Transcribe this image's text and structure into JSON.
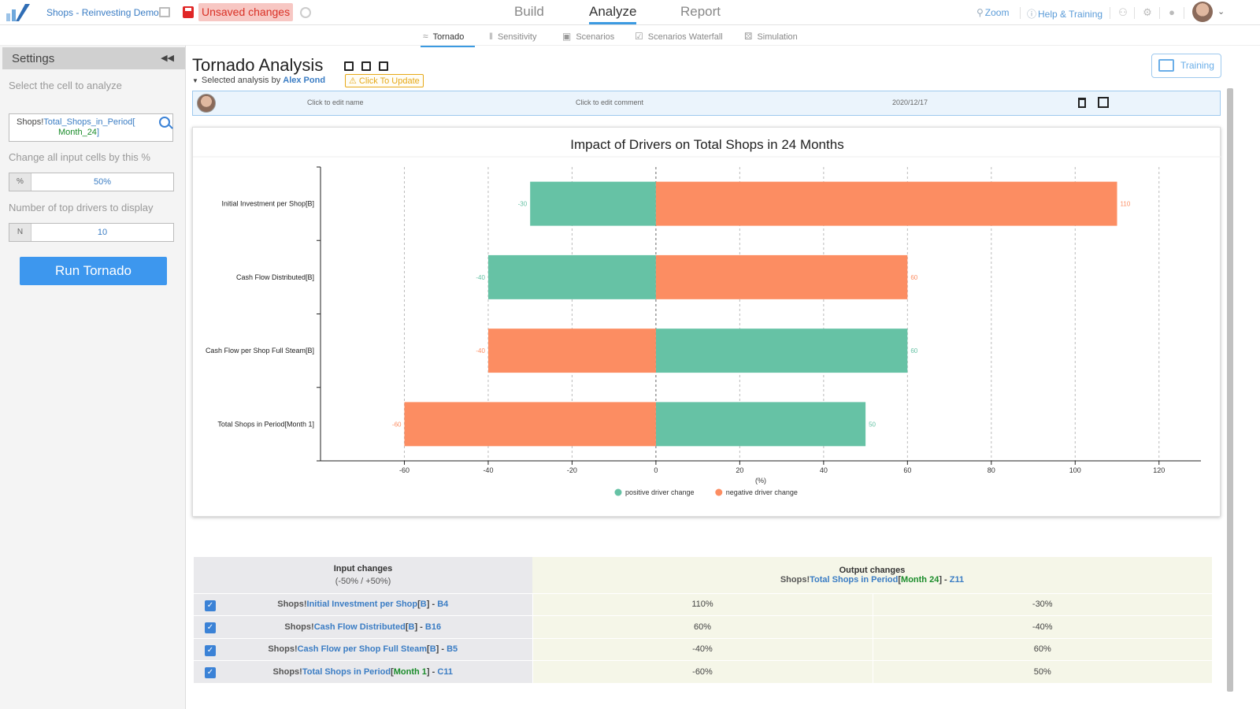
{
  "app": {
    "name": "Shops - Reinvesting Demo",
    "unsaved": "Unsaved changes"
  },
  "nav": {
    "tabs": [
      {
        "label": "Build"
      },
      {
        "label": "Analyze"
      },
      {
        "label": "Report"
      }
    ],
    "zoom": "Zoom",
    "help": "Help & Training"
  },
  "subnav": {
    "tabs": [
      {
        "label": "Tornado"
      },
      {
        "label": "Sensitivity"
      },
      {
        "label": "Scenarios"
      },
      {
        "label": "Scenarios Waterfall"
      },
      {
        "label": "Simulation"
      }
    ]
  },
  "sidebar": {
    "title": "Settings",
    "cell_label": "Select the cell to analyze",
    "cell_sheet": "Shops!",
    "cell_name": "Total_Shops_in_Period[",
    "cell_month": "Month_24",
    "cell_close": "]",
    "change_label": "Change all input cells by this %",
    "change_prefix": "%",
    "change_value": "50%",
    "top_label": "Number of top drivers to display",
    "top_prefix": "N",
    "top_value": "10",
    "run_label": "Run Tornado"
  },
  "page": {
    "title": "Tornado Analysis",
    "selected_by": "Selected analysis by",
    "author": "Alex Pond",
    "update": "Click To Update",
    "training": "Training"
  },
  "analysis": {
    "name": "Click to edit name",
    "comment": "Click to edit comment",
    "date": "2020/12/17"
  },
  "chart_data": {
    "type": "bar",
    "orientation": "horizontal",
    "title": "Impact of Drivers on Total Shops in 24 Months",
    "xlabel": "(%)",
    "xlim": [
      -80,
      130
    ],
    "xticks": [
      -60,
      -40,
      -20,
      0,
      20,
      40,
      60,
      80,
      100,
      120
    ],
    "categories": [
      "Initial Investment per Shop[B]",
      "Cash Flow Distributed[B]",
      "Cash Flow per Shop Full Steam[B]",
      "Total Shops in Period[Month 1]"
    ],
    "series": [
      {
        "name": "positive driver change",
        "color": "#66c2a5",
        "values": [
          -30,
          -40,
          60,
          50
        ]
      },
      {
        "name": "negative driver change",
        "color": "#fc8d62",
        "values": [
          110,
          60,
          -40,
          -60
        ]
      }
    ],
    "legend": "bottom-center",
    "grid": "vertical dashed"
  },
  "table": {
    "input_header": "Input changes",
    "input_sub": "(-50% / +50%)",
    "output_header": "Output changes",
    "output_sheet": "Shops!",
    "output_name": "Total Shops in Period",
    "output_open": "[",
    "output_month": "Month 24",
    "output_close": "] - ",
    "output_cell": "Z11",
    "rows": [
      {
        "sheet": "Shops!",
        "name": "Initial Investment per Shop",
        "open": "[",
        "bracket": "B",
        "close": "] - ",
        "cell": "B4",
        "pos": "110%",
        "neg": "-30%"
      },
      {
        "sheet": "Shops!",
        "name": "Cash Flow Distributed",
        "open": "[",
        "bracket": "B",
        "close": "] - ",
        "cell": "B16",
        "pos": "60%",
        "neg": "-40%"
      },
      {
        "sheet": "Shops!",
        "name": "Cash Flow per Shop Full Steam",
        "open": "[",
        "bracket": "B",
        "close": "] - ",
        "cell": "B5",
        "pos": "-40%",
        "neg": "60%"
      },
      {
        "sheet": "Shops!",
        "name": "Total Shops in Period",
        "open": "[",
        "bracket": "Month 1",
        "close": "] - ",
        "cell": "C11",
        "pos": "-60%",
        "neg": "50%"
      }
    ]
  }
}
